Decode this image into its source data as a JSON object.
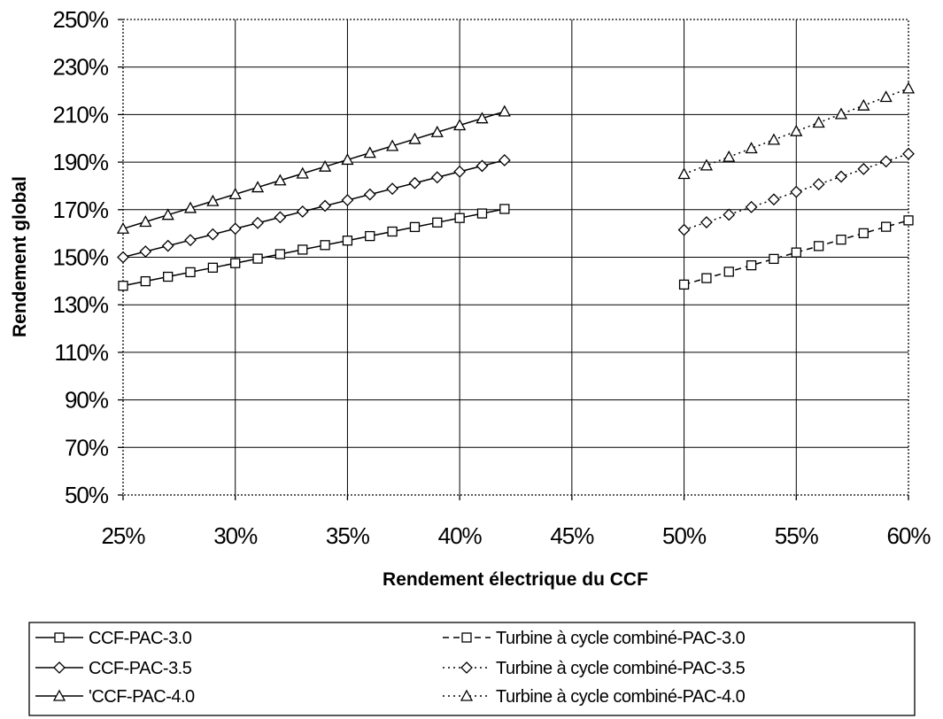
{
  "chart_data": {
    "type": "line",
    "title": "",
    "xlabel": "Rendement électrique du CCF",
    "ylabel": "Rendement global",
    "xlim": [
      25,
      60
    ],
    "ylim": [
      50,
      250
    ],
    "x_ticks": [
      25,
      30,
      35,
      40,
      45,
      50,
      55,
      60
    ],
    "y_ticks": [
      50,
      70,
      90,
      110,
      130,
      150,
      170,
      190,
      210,
      230,
      250
    ],
    "x_tick_labels": [
      "25%",
      "30%",
      "35%",
      "40%",
      "45%",
      "50%",
      "55%",
      "60%"
    ],
    "y_tick_labels": [
      "50%",
      "70%",
      "90%",
      "110%",
      "130%",
      "150%",
      "170%",
      "190%",
      "210%",
      "230%",
      "250%"
    ],
    "grid": true,
    "legend_position": "bottom",
    "series": [
      {
        "name": "CCF-PAC-3.0",
        "marker": "square",
        "line": "solid",
        "x": [
          25,
          26,
          27,
          28,
          29,
          30,
          31,
          32,
          33,
          34,
          35,
          36,
          37,
          38,
          39,
          40,
          41,
          42
        ],
        "y": [
          138,
          139.9,
          141.8,
          143.7,
          145.6,
          147.5,
          149.4,
          151.3,
          153.2,
          155.1,
          157,
          158.9,
          160.8,
          162.7,
          164.6,
          166.5,
          168.4,
          170.3
        ]
      },
      {
        "name": "CCF-PAC-3.5",
        "marker": "diamond",
        "line": "solid",
        "x": [
          25,
          26,
          27,
          28,
          29,
          30,
          31,
          32,
          33,
          34,
          35,
          36,
          37,
          38,
          39,
          40,
          41,
          42
        ],
        "y": [
          150,
          152.4,
          154.8,
          157.2,
          159.6,
          162,
          164.4,
          166.8,
          169.2,
          171.6,
          174,
          176.4,
          178.8,
          181.2,
          183.6,
          186,
          188.4,
          190.8
        ]
      },
      {
        "name": "'CCF-PAC-4.0",
        "marker": "triangle",
        "line": "solid",
        "x": [
          25,
          26,
          27,
          28,
          29,
          30,
          31,
          32,
          33,
          34,
          35,
          36,
          37,
          38,
          39,
          40,
          41,
          42
        ],
        "y": [
          162,
          164.9,
          167.8,
          170.7,
          173.6,
          176.5,
          179.4,
          182.3,
          185.2,
          188.1,
          191,
          193.9,
          196.8,
          199.7,
          202.6,
          205.5,
          208.4,
          211.3
        ]
      },
      {
        "name": "Turbine à cycle combiné-PAC-3.0",
        "marker": "square",
        "line": "dashed",
        "x": [
          50,
          51,
          52,
          53,
          54,
          55,
          56,
          57,
          58,
          59,
          60
        ],
        "y": [
          138.5,
          141.2,
          143.9,
          146.6,
          149.3,
          152,
          154.7,
          157.4,
          160.1,
          162.8,
          165.5
        ]
      },
      {
        "name": "Turbine à cycle combiné-PAC-3.5",
        "marker": "diamond",
        "line": "dotted",
        "x": [
          50,
          51,
          52,
          53,
          54,
          55,
          56,
          57,
          58,
          59,
          60
        ],
        "y": [
          161.5,
          164.7,
          167.9,
          171.1,
          174.3,
          177.5,
          180.7,
          183.9,
          187.1,
          190.3,
          193.5
        ]
      },
      {
        "name": "Turbine à cycle combiné-PAC-4.0",
        "marker": "triangle",
        "line": "dotted",
        "x": [
          50,
          51,
          52,
          53,
          54,
          55,
          56,
          57,
          58,
          59,
          60
        ],
        "y": [
          185,
          188.6,
          192.2,
          195.8,
          199.4,
          203,
          206.6,
          210.2,
          213.8,
          217.4,
          221
        ]
      }
    ]
  }
}
